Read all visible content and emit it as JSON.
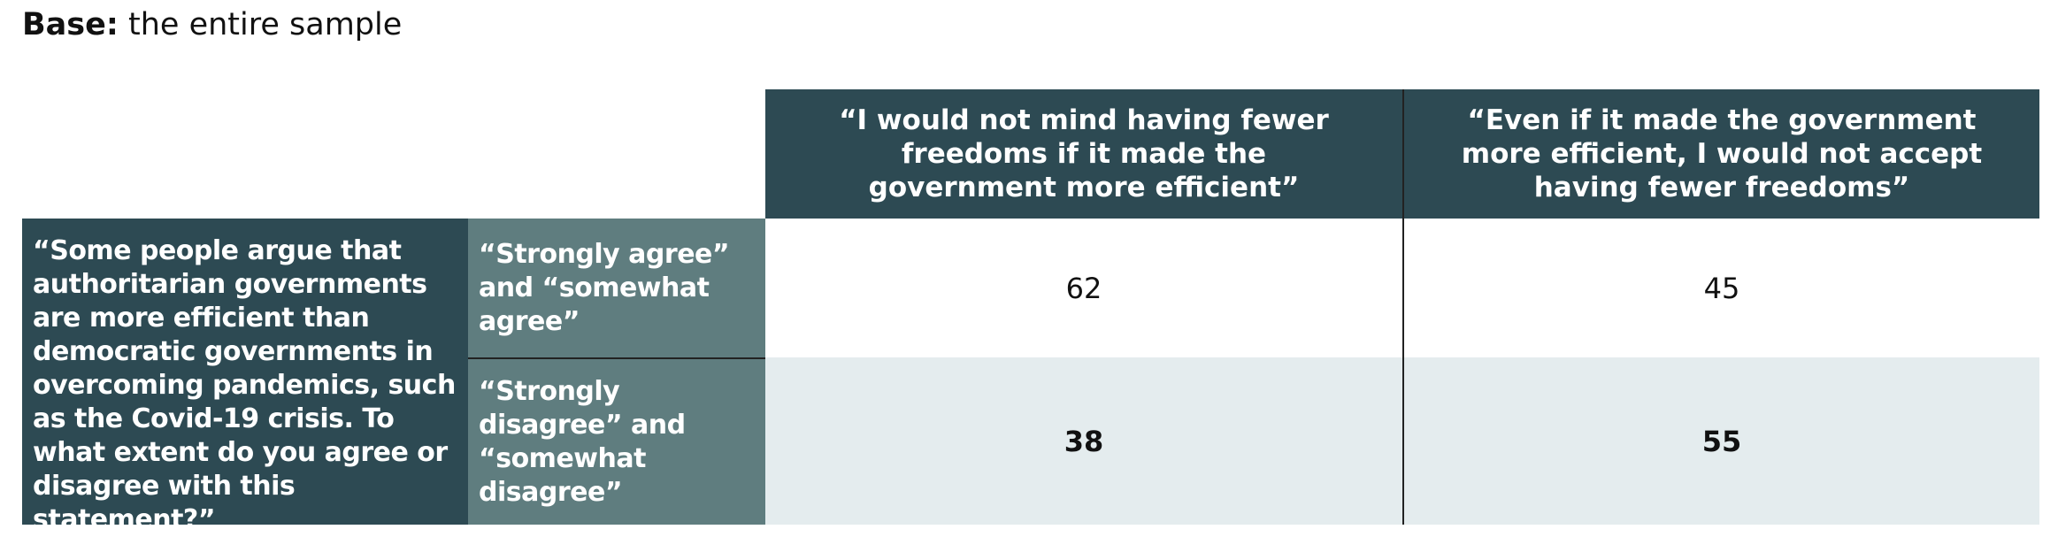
{
  "header": {
    "base_label": "Base:",
    "base_text": "the entire sample"
  },
  "table": {
    "columns": [
      "“I would not mind having fewer freedoms if it made the government more efficient”",
      "“Even if it made the government more efficient, I would not accept having fewer freedoms”"
    ],
    "question": "“Some people argue that authoritarian governments are more efficient than democratic governments in overcoming pandemics, such as the Covid-19 crisis. To what extent do you agree or disagree with this statement?”",
    "rows": [
      {
        "label": "“Strongly agree” and “somewhat agree”",
        "values": [
          62,
          45
        ]
      },
      {
        "label": "“Strongly disagree” and “somewhat disagree”",
        "values": [
          38,
          55
        ]
      }
    ]
  }
}
